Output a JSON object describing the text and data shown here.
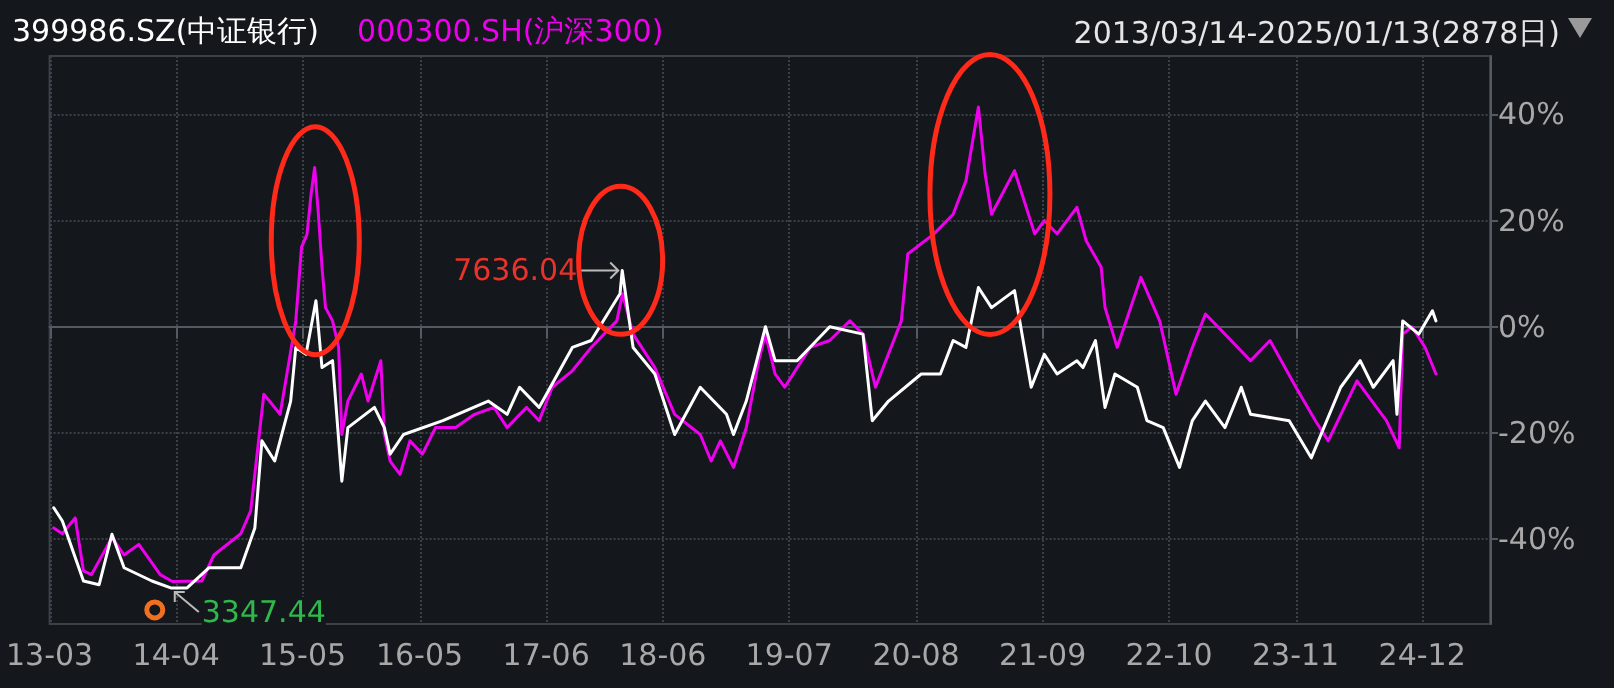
{
  "chart_data": {
    "type": "line",
    "subtitle": "2013/03/14-2025/01/13(2878日)",
    "xlim": [
      "2013-03-01",
      "2025-07-01"
    ],
    "xticks": [
      {
        "value": "2013-03-01",
        "label": "13-03"
      },
      {
        "value": "2014-04-01",
        "label": "14-04"
      },
      {
        "value": "2015-05-01",
        "label": "15-05"
      },
      {
        "value": "2016-05-01",
        "label": "16-05"
      },
      {
        "value": "2017-06-01",
        "label": "17-06"
      },
      {
        "value": "2018-06-01",
        "label": "18-06"
      },
      {
        "value": "2019-07-01",
        "label": "19-07"
      },
      {
        "value": "2020-08-01",
        "label": "20-08"
      },
      {
        "value": "2021-09-01",
        "label": "21-09"
      },
      {
        "value": "2022-10-01",
        "label": "22-10"
      },
      {
        "value": "2023-11-01",
        "label": "23-11"
      },
      {
        "value": "2024-12-01",
        "label": "24-12"
      }
    ],
    "ylim": [
      -56,
      51
    ],
    "yticks": [
      {
        "value": 40,
        "label": "40%"
      },
      {
        "value": 20,
        "label": "20%"
      },
      {
        "value": 0,
        "label": "0%"
      },
      {
        "value": -20,
        "label": "-20%"
      },
      {
        "value": -40,
        "label": "-40%"
      }
    ],
    "grid": true,
    "legend": "top left",
    "marker": "none",
    "line_style": "solid",
    "annotations": [
      {
        "text": "7636.04",
        "x": "2018-01-25",
        "y": 10.6
      },
      {
        "text": "3347.44",
        "x": "2014-03-15",
        "y": -49.2
      }
    ],
    "series": [
      {
        "name": "399986.SZ(中证银行)",
        "color": "#ffffff",
        "x": [
          "2013-03-14",
          "2013-04-10",
          "2013-06-15",
          "2013-08-03",
          "2013-09-12",
          "2013-10-20",
          "2014-01-15",
          "2014-03-15",
          "2014-05-05",
          "2014-07-13",
          "2014-10-20",
          "2014-12-03",
          "2014-12-25",
          "2015-02-03",
          "2015-03-25",
          "2015-04-10",
          "2015-05-12",
          "2015-06-12",
          "2015-07-01",
          "2015-08-03",
          "2015-09-01",
          "2015-09-20",
          "2015-12-12",
          "2016-01-12",
          "2016-01-30",
          "2016-03-12",
          "2016-07-13",
          "2016-12-02",
          "2017-01-30",
          "2017-03-10",
          "2017-05-10",
          "2017-07-30",
          "2017-08-22",
          "2017-10-20",
          "2018-01-18",
          "2018-01-25",
          "2018-02-28",
          "2018-05-07",
          "2018-07-08",
          "2018-09-26",
          "2018-12-17",
          "2019-01-08",
          "2019-02-17",
          "2019-04-18",
          "2019-05-18",
          "2019-07-26",
          "2019-11-05",
          "2020-02-17",
          "2020-03-17",
          "2020-05-07",
          "2020-08-17",
          "2020-10-16",
          "2020-11-25",
          "2021-01-04",
          "2021-02-12",
          "2021-03-25",
          "2021-06-05",
          "2021-07-27",
          "2021-09-06",
          "2021-10-16",
          "2021-12-17",
          "2022-01-05",
          "2022-02-13",
          "2022-03-15",
          "2022-04-15",
          "2022-06-24",
          "2022-07-24",
          "2022-09-13",
          "2022-11-03",
          "2022-12-13",
          "2023-01-23",
          "2023-03-25",
          "2023-05-15",
          "2023-06-13",
          "2023-10-12",
          "2023-12-20",
          "2024-03-21",
          "2024-05-21",
          "2024-07-01",
          "2024-09-01",
          "2024-09-13",
          "2024-10-01",
          "2024-11-20",
          "2025-01-02",
          "2025-01-13"
        ],
        "values": [
          -34.1,
          -36.6,
          -47.9,
          -48.6,
          -39.1,
          -45.4,
          -47.9,
          -49.2,
          -49.2,
          -45.4,
          -45.4,
          -37.9,
          -21.5,
          -25.3,
          -14,
          -3.9,
          -5.2,
          4.9,
          -7.7,
          -6.4,
          -29.1,
          -19,
          -15.2,
          -19,
          -24,
          -20.3,
          -17.7,
          -14,
          -16.5,
          -11.4,
          -15.2,
          -6.4,
          -3.9,
          -2.6,
          6.2,
          10.6,
          -3.9,
          -8.9,
          -20.3,
          -11.4,
          -16.5,
          -20.3,
          -14,
          0,
          -6.4,
          -6.4,
          0,
          -1.4,
          -17.7,
          -14,
          -8.9,
          -8.9,
          -2.6,
          -3.9,
          7.4,
          3.6,
          6.8,
          -11.4,
          -5.2,
          -8.9,
          -6.4,
          -7.7,
          -2.6,
          -15.2,
          -8.9,
          -11.4,
          -17.7,
          -19,
          -26.5,
          -17.7,
          -14,
          -19,
          -11.4,
          -16.5,
          -17.7,
          -24.7,
          -11.4,
          -6.4,
          -11.4,
          -6.4,
          -16.5,
          1.1,
          -1.4,
          3,
          1.1
        ]
      },
      {
        "name": "000300.SH(沪深300)",
        "color": "#ee00ee",
        "x": [
          "2013-03-14",
          "2013-04-10",
          "2013-05-20",
          "2013-06-15",
          "2013-07-10",
          "2013-09-12",
          "2013-10-20",
          "2013-12-05",
          "2014-02-10",
          "2014-03-20",
          "2014-06-20",
          "2014-07-28",
          "2014-10-20",
          "2014-11-20",
          "2014-12-10",
          "2014-12-31",
          "2015-02-20",
          "2015-04-10",
          "2015-04-28",
          "2015-05-15",
          "2015-05-28",
          "2015-06-08",
          "2015-06-20",
          "2015-07-01",
          "2015-07-12",
          "2015-08-03",
          "2015-08-22",
          "2015-09-01",
          "2015-09-20",
          "2015-11-01",
          "2015-11-22",
          "2016-01-01",
          "2016-01-12",
          "2016-01-30",
          "2016-03-01",
          "2016-04-01",
          "2016-05-10",
          "2016-06-20",
          "2016-08-22",
          "2016-10-20",
          "2016-12-20",
          "2017-01-30",
          "2017-04-01",
          "2017-05-10",
          "2017-06-20",
          "2017-08-22",
          "2017-10-20",
          "2018-01-08",
          "2018-01-26",
          "2018-02-28",
          "2018-05-07",
          "2018-07-08",
          "2018-09-26",
          "2018-10-30",
          "2018-11-28",
          "2019-01-08",
          "2019-02-17",
          "2019-03-28",
          "2019-04-18",
          "2019-05-18",
          "2019-06-17",
          "2019-09-05",
          "2019-11-05",
          "2020-01-07",
          "2020-02-17",
          "2020-03-27",
          "2020-06-16",
          "2020-07-06",
          "2020-09-26",
          "2020-11-25",
          "2021-01-04",
          "2021-02-12",
          "2021-03-05",
          "2021-03-25",
          "2021-06-05",
          "2021-08-07",
          "2021-09-06",
          "2021-10-16",
          "2021-12-17",
          "2022-01-15",
          "2022-03-03",
          "2022-03-15",
          "2022-04-22",
          "2022-07-05",
          "2022-09-02",
          "2022-10-23",
          "2022-12-13",
          "2023-01-23",
          "2023-03-25",
          "2023-06-13",
          "2023-08-13",
          "2023-11-02",
          "2024-01-02",
          "2024-02-11",
          "2024-05-11",
          "2024-08-11",
          "2024-09-20",
          "2024-10-01",
          "2024-10-30",
          "2024-12-10",
          "2025-01-13"
        ],
        "values": [
          -37.9,
          -39,
          -36,
          -46,
          -46.7,
          -39.7,
          -43,
          -41,
          -46.7,
          -48,
          -47.9,
          -43,
          -39,
          -34.7,
          -24,
          -12.7,
          -16.5,
          1.1,
          15,
          17.4,
          25,
          30,
          21,
          11.2,
          3.6,
          1.1,
          -3.9,
          -20.3,
          -14,
          -8.9,
          -14,
          -6.4,
          -20.3,
          -25.3,
          -27.8,
          -21.5,
          -24,
          -19,
          -19,
          -16.5,
          -15.2,
          -19,
          -15.2,
          -17.7,
          -11.4,
          -8.3,
          -3.9,
          1.1,
          6.2,
          -1.4,
          -7.7,
          -16.5,
          -20.3,
          -25.3,
          -21.5,
          -26.5,
          -19,
          -6.4,
          -1.4,
          -8.9,
          -11.4,
          -3.9,
          -2.6,
          1.1,
          -1.4,
          -11.4,
          1.1,
          13.7,
          17.5,
          21.2,
          27.5,
          41.4,
          28.8,
          21.2,
          29.4,
          17.5,
          20,
          17.5,
          22.5,
          16.2,
          11.2,
          3.6,
          -3.9,
          9.3,
          1.1,
          -12.7,
          -3.9,
          2.4,
          -1.4,
          -6.4,
          -2.6,
          -11.4,
          -17.7,
          -21.5,
          -10.2,
          -17.7,
          -22.8,
          -1.4,
          0,
          -3.9,
          -8.9
        ]
      }
    ]
  }
}
